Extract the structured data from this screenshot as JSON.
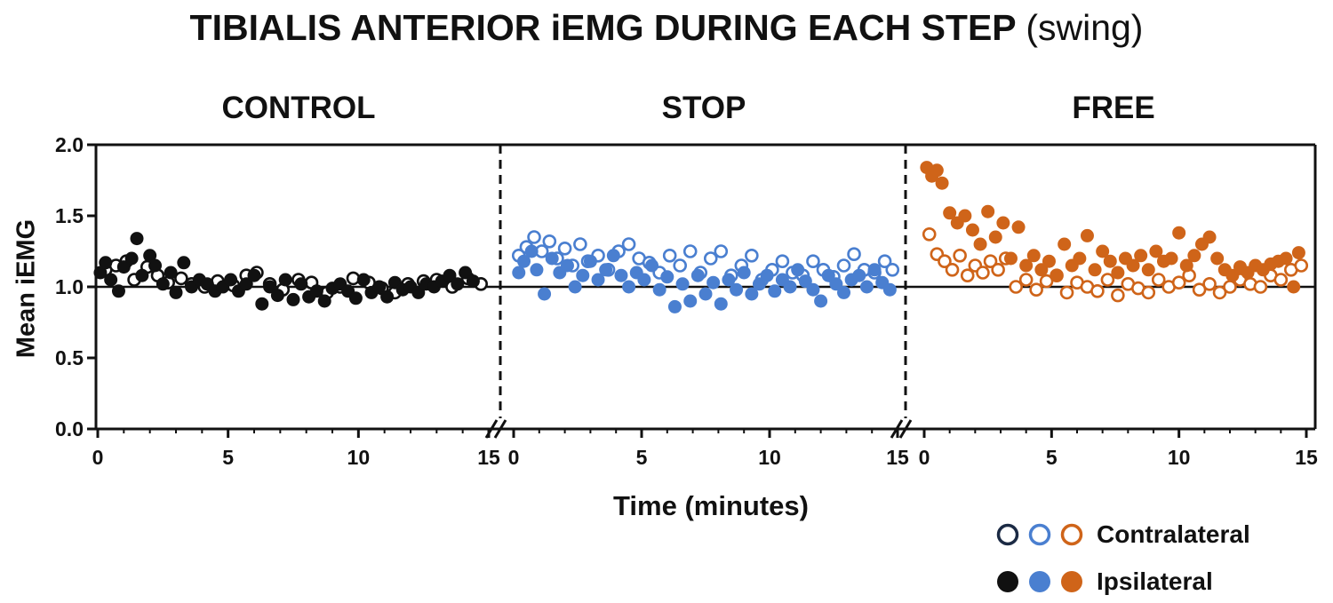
{
  "title": {
    "main": "TIBIALIS ANTERIOR iEMG DURING EACH STEP",
    "sub": "(swing)"
  },
  "colors": {
    "control": "#111111",
    "stop": "#4a7fd0",
    "free": "#cf6419"
  },
  "legend": {
    "contralateral": "Contralateral",
    "ipsilateral": "Ipsilateral"
  },
  "chart_data": {
    "type": "scatter",
    "ylabel": "Mean iEMG",
    "xlabel": "Time (minutes)",
    "ylim": [
      0,
      2.0
    ],
    "yticks": [
      "0.0",
      "0.5",
      "1.0",
      "1.5",
      "2.0"
    ],
    "xlim": [
      0,
      15
    ],
    "xticks": [
      "0",
      "5",
      "10",
      "15"
    ],
    "reference_line_y": 1.0,
    "panels": [
      {
        "name": "CONTROL",
        "series": [
          {
            "name": "Contralateral",
            "style": "open",
            "x": [
              0.3,
              0.7,
              1.1,
              1.4,
              1.9,
              2.3,
              2.7,
              3.2,
              3.6,
              4.1,
              4.6,
              5.2,
              5.7,
              6.1,
              6.6,
              7.1,
              7.7,
              8.2,
              8.8,
              9.3,
              9.8,
              10.4,
              10.9,
              11.4,
              11.9,
              12.5,
              13.0,
              13.6,
              14.2,
              14.7
            ],
            "y": [
              1.12,
              1.15,
              1.18,
              1.05,
              1.14,
              1.08,
              1.03,
              1.06,
              1.02,
              1.0,
              1.04,
              1.01,
              1.08,
              1.1,
              1.02,
              0.98,
              1.05,
              1.03,
              0.96,
              1.0,
              1.06,
              1.03,
              0.99,
              0.96,
              1.02,
              1.04,
              1.05,
              1.0,
              1.06,
              1.02
            ]
          },
          {
            "name": "Ipsilateral",
            "style": "filled",
            "x": [
              0.1,
              0.3,
              0.5,
              0.8,
              1.0,
              1.3,
              1.5,
              1.7,
              2.0,
              2.2,
              2.5,
              2.8,
              3.0,
              3.3,
              3.6,
              3.9,
              4.2,
              4.5,
              4.8,
              5.1,
              5.4,
              5.7,
              6.0,
              6.3,
              6.6,
              6.9,
              7.2,
              7.5,
              7.8,
              8.1,
              8.4,
              8.7,
              9.0,
              9.3,
              9.6,
              9.9,
              10.2,
              10.5,
              10.8,
              11.1,
              11.4,
              11.7,
              12.0,
              12.3,
              12.6,
              12.9,
              13.2,
              13.5,
              13.8,
              14.1,
              14.4
            ],
            "y": [
              1.1,
              1.17,
              1.05,
              0.97,
              1.14,
              1.2,
              1.34,
              1.08,
              1.22,
              1.15,
              1.02,
              1.1,
              0.96,
              1.17,
              1.0,
              1.05,
              1.02,
              0.97,
              1.0,
              1.05,
              0.97,
              1.02,
              1.08,
              0.88,
              1.0,
              0.94,
              1.05,
              0.91,
              1.02,
              0.93,
              0.97,
              0.9,
              0.99,
              1.02,
              0.97,
              0.92,
              1.05,
              0.96,
              1.0,
              0.93,
              1.03,
              0.98,
              1.0,
              0.96,
              1.02,
              1.0,
              1.04,
              1.08,
              1.02,
              1.1,
              1.04
            ]
          }
        ]
      },
      {
        "name": "STOP",
        "series": [
          {
            "name": "Contralateral",
            "style": "open",
            "x": [
              0.2,
              0.5,
              0.8,
              1.1,
              1.4,
              1.7,
              2.0,
              2.3,
              2.6,
              2.9,
              3.3,
              3.7,
              4.1,
              4.5,
              4.9,
              5.3,
              5.7,
              6.1,
              6.5,
              6.9,
              7.3,
              7.7,
              8.1,
              8.5,
              8.9,
              9.3,
              9.7,
              10.1,
              10.5,
              10.9,
              11.3,
              11.7,
              12.1,
              12.5,
              12.9,
              13.3,
              13.7,
              14.1,
              14.5,
              14.8
            ],
            "y": [
              1.22,
              1.28,
              1.35,
              1.25,
              1.32,
              1.2,
              1.27,
              1.15,
              1.3,
              1.18,
              1.22,
              1.12,
              1.25,
              1.3,
              1.2,
              1.17,
              1.1,
              1.22,
              1.15,
              1.25,
              1.1,
              1.2,
              1.25,
              1.08,
              1.15,
              1.22,
              1.05,
              1.12,
              1.18,
              1.1,
              1.08,
              1.18,
              1.12,
              1.07,
              1.15,
              1.23,
              1.12,
              1.1,
              1.18,
              1.12
            ]
          },
          {
            "name": "Ipsilateral",
            "style": "filled",
            "x": [
              0.2,
              0.4,
              0.7,
              0.9,
              1.2,
              1.5,
              1.8,
              2.1,
              2.4,
              2.7,
              3.0,
              3.3,
              3.6,
              3.9,
              4.2,
              4.5,
              4.8,
              5.1,
              5.4,
              5.7,
              6.0,
              6.3,
              6.6,
              6.9,
              7.2,
              7.5,
              7.8,
              8.1,
              8.4,
              8.7,
              9.0,
              9.3,
              9.6,
              9.9,
              10.2,
              10.5,
              10.8,
              11.1,
              11.4,
              11.7,
              12.0,
              12.3,
              12.6,
              12.9,
              13.2,
              13.5,
              13.8,
              14.1,
              14.4,
              14.7
            ],
            "y": [
              1.1,
              1.18,
              1.25,
              1.12,
              0.95,
              1.2,
              1.1,
              1.15,
              1.0,
              1.08,
              1.18,
              1.05,
              1.12,
              1.22,
              1.08,
              1.0,
              1.1,
              1.05,
              1.15,
              0.98,
              1.07,
              0.86,
              1.02,
              0.9,
              1.08,
              0.95,
              1.03,
              0.88,
              1.05,
              0.98,
              1.1,
              0.95,
              1.02,
              1.08,
              0.97,
              1.05,
              1.0,
              1.12,
              1.04,
              0.98,
              0.9,
              1.08,
              1.02,
              0.96,
              1.05,
              1.08,
              1.0,
              1.12,
              1.03,
              0.98
            ]
          }
        ]
      },
      {
        "name": "FREE",
        "series": [
          {
            "name": "Contralateral",
            "style": "open",
            "x": [
              0.2,
              0.5,
              0.8,
              1.1,
              1.4,
              1.7,
              2.0,
              2.3,
              2.6,
              2.9,
              3.2,
              3.6,
              4.0,
              4.4,
              4.8,
              5.2,
              5.6,
              6.0,
              6.4,
              6.8,
              7.2,
              7.6,
              8.0,
              8.4,
              8.8,
              9.2,
              9.6,
              10.0,
              10.4,
              10.8,
              11.2,
              11.6,
              12.0,
              12.4,
              12.8,
              13.2,
              13.6,
              14.0,
              14.4,
              14.8
            ],
            "y": [
              1.37,
              1.23,
              1.18,
              1.12,
              1.22,
              1.08,
              1.15,
              1.1,
              1.18,
              1.12,
              1.2,
              1.0,
              1.05,
              0.98,
              1.04,
              1.08,
              0.96,
              1.03,
              1.0,
              0.97,
              1.05,
              0.94,
              1.02,
              0.99,
              0.96,
              1.05,
              1.0,
              1.03,
              1.08,
              0.98,
              1.02,
              0.96,
              1.0,
              1.05,
              1.02,
              1.0,
              1.08,
              1.05,
              1.12,
              1.15
            ]
          },
          {
            "name": "Ipsilateral",
            "style": "filled",
            "x": [
              0.1,
              0.3,
              0.5,
              0.7,
              1.0,
              1.3,
              1.6,
              1.9,
              2.2,
              2.5,
              2.8,
              3.1,
              3.4,
              3.7,
              4.0,
              4.3,
              4.6,
              4.9,
              5.2,
              5.5,
              5.8,
              6.1,
              6.4,
              6.7,
              7.0,
              7.3,
              7.6,
              7.9,
              8.2,
              8.5,
              8.8,
              9.1,
              9.4,
              9.7,
              10.0,
              10.3,
              10.6,
              10.9,
              11.2,
              11.5,
              11.8,
              12.1,
              12.4,
              12.7,
              13.0,
              13.3,
              13.6,
              13.9,
              14.2,
              14.5,
              14.7
            ],
            "y": [
              1.84,
              1.78,
              1.82,
              1.73,
              1.52,
              1.45,
              1.5,
              1.4,
              1.3,
              1.53,
              1.35,
              1.45,
              1.2,
              1.42,
              1.15,
              1.22,
              1.12,
              1.18,
              1.08,
              1.3,
              1.15,
              1.2,
              1.36,
              1.12,
              1.25,
              1.18,
              1.1,
              1.2,
              1.15,
              1.22,
              1.12,
              1.25,
              1.18,
              1.2,
              1.38,
              1.15,
              1.22,
              1.3,
              1.35,
              1.2,
              1.12,
              1.08,
              1.14,
              1.1,
              1.15,
              1.12,
              1.16,
              1.18,
              1.2,
              1.0,
              1.24
            ]
          }
        ]
      }
    ]
  }
}
